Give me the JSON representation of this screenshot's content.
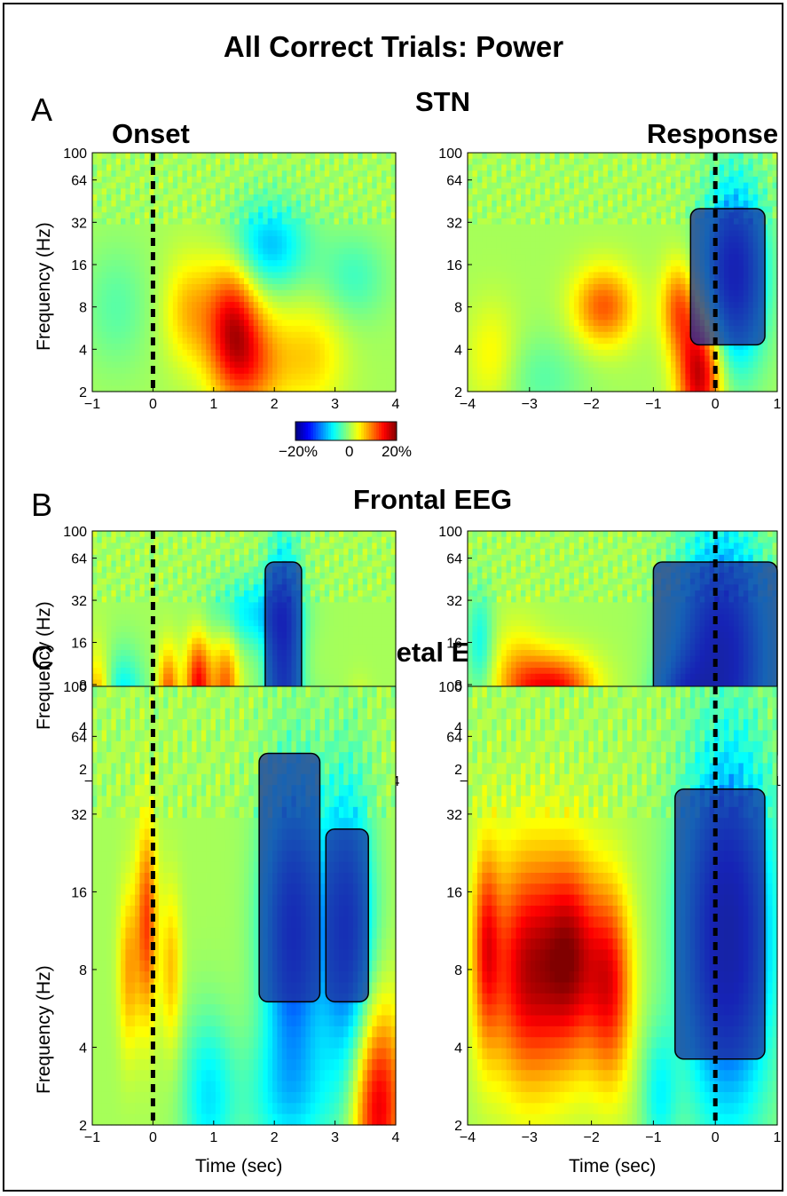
{
  "figure": {
    "title": "All Correct Trials: Power",
    "column_titles": {
      "onset": "Onset",
      "response": "Response"
    },
    "x_axis_label": "Time (sec)",
    "y_axis_label": "Frequency (Hz)",
    "colorbar": {
      "labels": [
        "−20%",
        "0",
        "20%"
      ],
      "range": [
        -20,
        20
      ],
      "unit": "%",
      "colormap": "jet"
    },
    "panels": [
      {
        "letter": "A",
        "title": "STN"
      },
      {
        "letter": "B",
        "title": "Frontal EEG"
      },
      {
        "letter": "C",
        "title": "Parietal EEG"
      }
    ]
  },
  "chart_data": [
    {
      "type": "heatmap",
      "panel": "A",
      "region": "STN",
      "alignment": "Onset",
      "x_ticks": [
        -1,
        0,
        1,
        2,
        3,
        4
      ],
      "xlim": [
        -1,
        4
      ],
      "y_ticks": [
        2,
        4,
        8,
        16,
        32,
        64,
        100
      ],
      "ylim": [
        2,
        100
      ],
      "y_scale": "log",
      "event_marker_x": 0,
      "blobs": [
        {
          "t": 1.3,
          "f": 6.5,
          "value": 12,
          "ts": 0.3,
          "fs": 0.35
        },
        {
          "t": 1.6,
          "f": 3.2,
          "value": 9,
          "ts": 0.4,
          "fs": 0.3
        },
        {
          "t": 0.6,
          "f": 7.5,
          "value": 6,
          "ts": 0.3,
          "fs": 0.3
        },
        {
          "t": 2.6,
          "f": 3.6,
          "value": 5,
          "ts": 0.4,
          "fs": 0.3
        },
        {
          "t": 1.9,
          "f": 22,
          "value": -9,
          "ts": 0.45,
          "fs": 0.25
        },
        {
          "t": 3.3,
          "f": 13,
          "value": -4,
          "ts": 0.4,
          "fs": 0.25
        },
        {
          "t": -0.6,
          "f": 8,
          "value": -3,
          "ts": 0.4,
          "fs": 0.35
        }
      ],
      "significant_clusters": []
    },
    {
      "type": "heatmap",
      "panel": "A",
      "region": "STN",
      "alignment": "Response",
      "x_ticks": [
        -4,
        -3,
        -2,
        -1,
        0,
        1
      ],
      "xlim": [
        -4,
        1
      ],
      "y_ticks": [
        2,
        4,
        8,
        16,
        32,
        64,
        100
      ],
      "ylim": [
        2,
        100
      ],
      "y_scale": "log",
      "event_marker_x": 0,
      "blobs": [
        {
          "t": -0.25,
          "f": 2.8,
          "value": 17,
          "ts": 0.25,
          "fs": 0.35
        },
        {
          "t": -0.6,
          "f": 8,
          "value": 9,
          "ts": 0.2,
          "fs": 0.25
        },
        {
          "t": -1.8,
          "f": 8,
          "value": 10,
          "ts": 0.35,
          "fs": 0.22
        },
        {
          "t": -3.6,
          "f": 3.5,
          "value": 4,
          "ts": 0.3,
          "fs": 0.3
        },
        {
          "t": 0.3,
          "f": 14,
          "value": -17,
          "ts": 0.35,
          "fs": 0.5
        },
        {
          "t": -2.8,
          "f": 2.5,
          "value": -3,
          "ts": 0.5,
          "fs": 0.25
        }
      ],
      "significant_clusters": [
        {
          "t_range": [
            -0.4,
            0.8
          ],
          "f_range": [
            4.3,
            40
          ]
        }
      ]
    },
    {
      "type": "heatmap",
      "panel": "B",
      "region": "Frontal EEG",
      "alignment": "Onset",
      "x_ticks": [
        -1,
        0,
        1,
        2,
        3,
        4
      ],
      "xlim": [
        -1,
        4
      ],
      "y_ticks": [
        2,
        4,
        8,
        16,
        32,
        64,
        100
      ],
      "ylim": [
        2,
        100
      ],
      "y_scale": "log",
      "event_marker_x": 0,
      "blobs": [
        {
          "t": 0.75,
          "f": 7.5,
          "value": 14,
          "ts": 0.15,
          "fs": 0.3
        },
        {
          "t": 0.25,
          "f": 7,
          "value": 10,
          "ts": 0.12,
          "fs": 0.25
        },
        {
          "t": 1.2,
          "f": 7,
          "value": 10,
          "ts": 0.15,
          "fs": 0.35
        },
        {
          "t": -0.9,
          "f": 4,
          "value": 12,
          "ts": 0.15,
          "fs": 0.35
        },
        {
          "t": 3.4,
          "f": 2.6,
          "value": 14,
          "ts": 0.15,
          "fs": 0.25
        },
        {
          "t": 2.15,
          "f": 14,
          "value": -14,
          "ts": 0.2,
          "fs": 0.6
        },
        {
          "t": 1.6,
          "f": 26,
          "value": -7,
          "ts": 0.5,
          "fs": 0.2
        },
        {
          "t": -0.5,
          "f": 5.5,
          "value": -8,
          "ts": 0.25,
          "fs": 0.3
        },
        {
          "t": 2.3,
          "f": 3.0,
          "value": -5,
          "ts": 0.5,
          "fs": 0.25
        }
      ],
      "significant_clusters": [
        {
          "t_range": [
            1.85,
            2.45
          ],
          "f_range": [
            6.2,
            60
          ]
        }
      ]
    },
    {
      "type": "heatmap",
      "panel": "B",
      "region": "Frontal EEG",
      "alignment": "Response",
      "x_ticks": [
        -4,
        -3,
        -2,
        -1,
        0,
        1
      ],
      "xlim": [
        -4,
        1
      ],
      "y_ticks": [
        2,
        4,
        8,
        16,
        32,
        64,
        100
      ],
      "ylim": [
        2,
        100
      ],
      "y_scale": "log",
      "event_marker_x": 0,
      "blobs": [
        {
          "t": -2.6,
          "f": 7.2,
          "value": 14,
          "ts": 0.45,
          "fs": 0.2
        },
        {
          "t": -3.2,
          "f": 9,
          "value": 5,
          "ts": 0.3,
          "fs": 0.3
        },
        {
          "t": 0.1,
          "f": 12,
          "value": -18,
          "ts": 0.5,
          "fs": 0.7
        },
        {
          "t": -0.5,
          "f": 4,
          "value": -14,
          "ts": 0.3,
          "fs": 0.3
        },
        {
          "t": -2.0,
          "f": 2.6,
          "value": -10,
          "ts": 0.8,
          "fs": 0.2
        },
        {
          "t": -3.8,
          "f": 16,
          "value": -6,
          "ts": 0.15,
          "fs": 0.3
        }
      ],
      "significant_clusters": [
        {
          "t_range": [
            -1.0,
            1.0
          ],
          "f_range": [
            2.2,
            60
          ]
        }
      ]
    },
    {
      "type": "heatmap",
      "panel": "C",
      "region": "Parietal EEG",
      "alignment": "Onset",
      "x_ticks": [
        -1,
        0,
        1,
        2,
        3,
        4
      ],
      "xlim": [
        -1,
        4
      ],
      "y_ticks": [
        2,
        4,
        8,
        16,
        32,
        64,
        100
      ],
      "ylim": [
        2,
        100
      ],
      "y_scale": "log",
      "event_marker_x": 0,
      "blobs": [
        {
          "t": 2.3,
          "f": 11,
          "value": -15,
          "ts": 0.35,
          "fs": 0.45
        },
        {
          "t": 3.2,
          "f": 11,
          "value": -14,
          "ts": 0.3,
          "fs": 0.45
        },
        {
          "t": 3.7,
          "f": 2.4,
          "value": 15,
          "ts": 0.3,
          "fs": 0.3
        },
        {
          "t": -0.1,
          "f": 12,
          "value": 11,
          "ts": 0.12,
          "fs": 0.3
        },
        {
          "t": -0.4,
          "f": 8,
          "value": 7,
          "ts": 0.12,
          "fs": 0.25
        },
        {
          "t": 0.3,
          "f": 8,
          "value": 6,
          "ts": 0.12,
          "fs": 0.25
        },
        {
          "t": 0.9,
          "f": 2.6,
          "value": -7,
          "ts": 0.3,
          "fs": 0.25
        },
        {
          "t": 2.2,
          "f": 2.5,
          "value": -5,
          "ts": 0.6,
          "fs": 0.2
        }
      ],
      "significant_clusters": [
        {
          "t_range": [
            1.75,
            2.75
          ],
          "f_range": [
            6,
            55
          ]
        },
        {
          "t_range": [
            2.85,
            3.55
          ],
          "f_range": [
            6,
            28
          ]
        }
      ]
    },
    {
      "type": "heatmap",
      "panel": "C",
      "region": "Parietal EEG",
      "alignment": "Response",
      "x_ticks": [
        -4,
        -3,
        -2,
        -1,
        0,
        1
      ],
      "xlim": [
        -4,
        1
      ],
      "y_ticks": [
        2,
        4,
        8,
        16,
        32,
        64,
        100
      ],
      "ylim": [
        2,
        100
      ],
      "y_scale": "log",
      "event_marker_x": 0,
      "blobs": [
        {
          "t": -3.0,
          "f": 8,
          "value": 16,
          "ts": 0.45,
          "fs": 0.35
        },
        {
          "t": -2.3,
          "f": 9,
          "value": 13,
          "ts": 0.3,
          "fs": 0.3
        },
        {
          "t": -1.7,
          "f": 7,
          "value": 13,
          "ts": 0.25,
          "fs": 0.3
        },
        {
          "t": -3.7,
          "f": 10,
          "value": 10,
          "ts": 0.15,
          "fs": 0.3
        },
        {
          "t": 0.2,
          "f": 11,
          "value": -19,
          "ts": 0.5,
          "fs": 0.55
        },
        {
          "t": -0.9,
          "f": 2.6,
          "value": -6,
          "ts": 0.2,
          "fs": 0.2
        }
      ],
      "significant_clusters": [
        {
          "t_range": [
            -0.65,
            0.8
          ],
          "f_range": [
            3.6,
            40
          ]
        }
      ]
    }
  ]
}
